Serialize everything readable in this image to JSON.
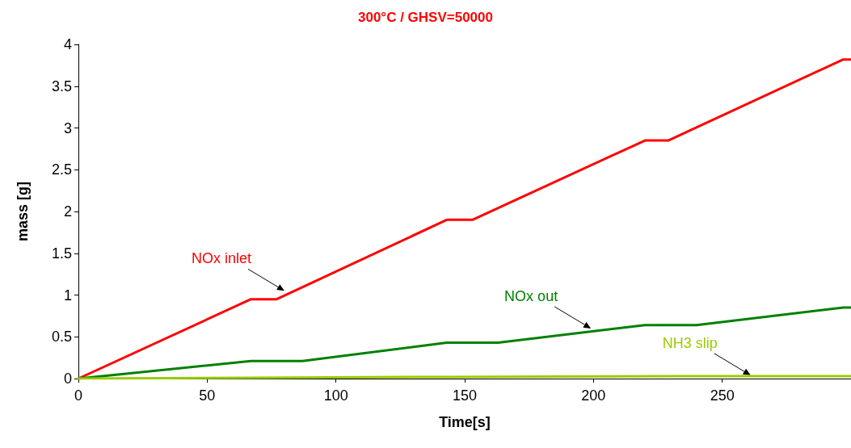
{
  "chart_data": {
    "type": "line",
    "title": "300°C / GHSV=50000",
    "xlabel": "Time[s]",
    "ylabel": "mass [g]",
    "xlim": [
      0,
      300
    ],
    "xticks": [
      0,
      50,
      100,
      150,
      200,
      250
    ],
    "ylim": [
      0,
      4
    ],
    "yticks": [
      0,
      0.5,
      1,
      1.5,
      2,
      2.5,
      3,
      3.5,
      4
    ],
    "grid": false,
    "marker": "none",
    "line_style": "solid",
    "series": [
      {
        "color": "#ff0000",
        "x": [
          0,
          67,
          77,
          143,
          153,
          220,
          229,
          297,
          300
        ],
        "values": [
          0,
          0.95,
          0.95,
          1.9,
          1.9,
          2.85,
          2.85,
          3.82,
          3.82
        ]
      },
      {
        "color": "#008000",
        "x": [
          0,
          67,
          87,
          143,
          163,
          220,
          240,
          297,
          300
        ],
        "values": [
          0,
          0.21,
          0.21,
          0.43,
          0.43,
          0.64,
          0.64,
          0.85,
          0.85
        ]
      },
      {
        "color": "#99cc00",
        "x": [
          0,
          67,
          143,
          232,
          300
        ],
        "values": [
          0,
          0.01,
          0.02,
          0.03,
          0.03
        ]
      }
    ],
    "annotations": [
      {
        "text": "NOx inlet",
        "x": 80,
        "y": 1.05
      },
      {
        "text": "NOx out",
        "x": 199,
        "y": 0.6
      },
      {
        "text": "NH3 slip",
        "x": 261,
        "y": 0.04
      }
    ]
  }
}
